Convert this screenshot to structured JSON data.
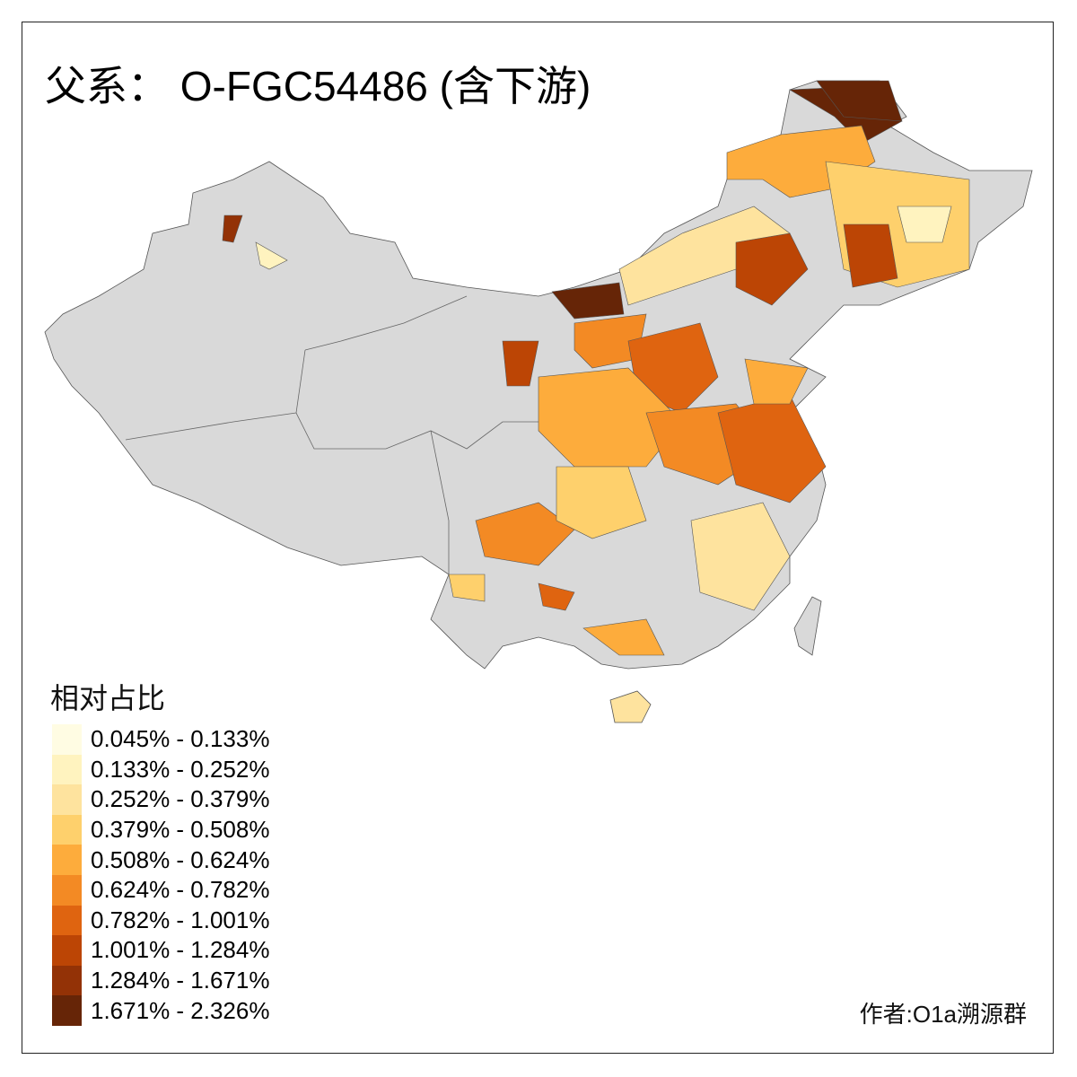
{
  "title": "父系： O-FGC54486 (含下游)",
  "legend": {
    "title": "相对占比",
    "items": [
      {
        "label": "0.045% - 0.133%",
        "color": "#FFFCE3"
      },
      {
        "label": "0.133% - 0.252%",
        "color": "#FFF3BF"
      },
      {
        "label": "0.252% - 0.379%",
        "color": "#FEE39E"
      },
      {
        "label": "0.379% - 0.508%",
        "color": "#FED06C"
      },
      {
        "label": "0.508% - 0.624%",
        "color": "#FDAC3C"
      },
      {
        "label": "0.624% - 0.782%",
        "color": "#F38A24"
      },
      {
        "label": "0.782% - 1.001%",
        "color": "#DF6410"
      },
      {
        "label": "1.001% - 1.284%",
        "color": "#BC4505"
      },
      {
        "label": "1.284% - 1.671%",
        "color": "#933206"
      },
      {
        "label": "1.671% - 2.326%",
        "color": "#662507"
      }
    ]
  },
  "no_data_color": "#D9D9D9",
  "author": "作者:O1a溯源群"
}
